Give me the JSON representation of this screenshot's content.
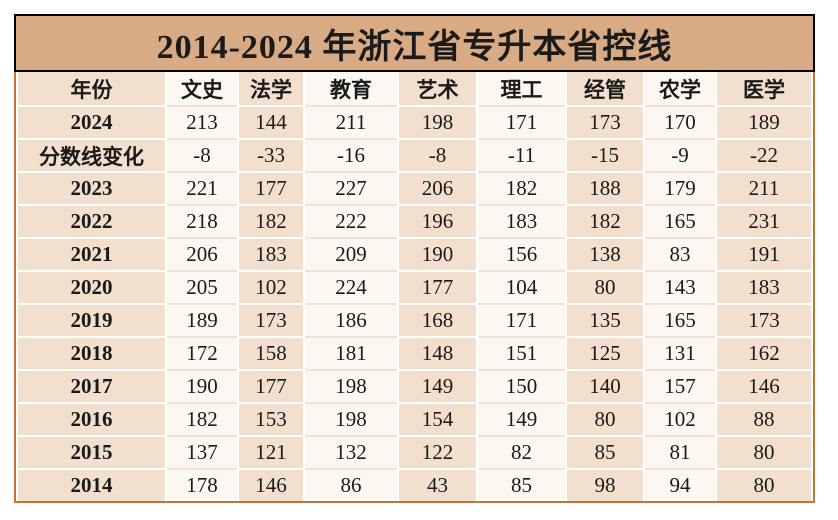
{
  "title": "2014-2024 年浙江省专升本省控线",
  "table": {
    "headers": [
      "年份",
      "文史",
      "法学",
      "教育",
      "艺术",
      "理工",
      "经管",
      "农学",
      "医学"
    ],
    "rows": [
      {
        "label": "2024",
        "values": [
          "213",
          "144",
          "211",
          "198",
          "171",
          "173",
          "170",
          "189"
        ]
      },
      {
        "label": "分数线变化",
        "values": [
          "-8",
          "-33",
          "-16",
          "-8",
          "-11",
          "-15",
          "-9",
          "-22"
        ]
      },
      {
        "label": "2023",
        "values": [
          "221",
          "177",
          "227",
          "206",
          "182",
          "188",
          "179",
          "211"
        ]
      },
      {
        "label": "2022",
        "values": [
          "218",
          "182",
          "222",
          "196",
          "183",
          "182",
          "165",
          "231"
        ]
      },
      {
        "label": "2021",
        "values": [
          "206",
          "183",
          "209",
          "190",
          "156",
          "138",
          "83",
          "191"
        ]
      },
      {
        "label": "2020",
        "values": [
          "205",
          "102",
          "224",
          "177",
          "104",
          "80",
          "143",
          "183"
        ]
      },
      {
        "label": "2019",
        "values": [
          "189",
          "173",
          "186",
          "168",
          "171",
          "135",
          "165",
          "173"
        ]
      },
      {
        "label": "2018",
        "values": [
          "172",
          "158",
          "181",
          "148",
          "151",
          "125",
          "131",
          "162"
        ]
      },
      {
        "label": "2017",
        "values": [
          "190",
          "177",
          "198",
          "149",
          "150",
          "140",
          "157",
          "146"
        ]
      },
      {
        "label": "2016",
        "values": [
          "182",
          "153",
          "198",
          "154",
          "149",
          "80",
          "102",
          "88"
        ]
      },
      {
        "label": "2015",
        "values": [
          "137",
          "121",
          "132",
          "122",
          "82",
          "85",
          "81",
          "80"
        ]
      },
      {
        "label": "2014",
        "values": [
          "178",
          "146",
          "86",
          "43",
          "85",
          "98",
          "94",
          "80"
        ]
      }
    ]
  },
  "colors": {
    "title_bar_bg": "#d8ab84",
    "title_border": "#000000",
    "tan_column_bg": "#f3dfce",
    "cream_column_bg": "#fcf8f1",
    "cream_separator": "#f3e1d2",
    "outer_border": "#bf7639",
    "text": "#1a1a1a",
    "page_bg": "#ffffff"
  },
  "chart_data": {
    "type": "table",
    "title": "2014-2024 年浙江省专升本省控线",
    "categories": [
      "文史",
      "法学",
      "教育",
      "艺术",
      "理工",
      "经管",
      "农学",
      "医学"
    ],
    "series": [
      {
        "name": "2024",
        "values": [
          213,
          144,
          211,
          198,
          171,
          173,
          170,
          189
        ]
      },
      {
        "name": "分数线变化",
        "values": [
          -8,
          -33,
          -16,
          -8,
          -11,
          -15,
          -9,
          -22
        ]
      },
      {
        "name": "2023",
        "values": [
          221,
          177,
          227,
          206,
          182,
          188,
          179,
          211
        ]
      },
      {
        "name": "2022",
        "values": [
          218,
          182,
          222,
          196,
          183,
          182,
          165,
          231
        ]
      },
      {
        "name": "2021",
        "values": [
          206,
          183,
          209,
          190,
          156,
          138,
          83,
          191
        ]
      },
      {
        "name": "2020",
        "values": [
          205,
          102,
          224,
          177,
          104,
          80,
          143,
          183
        ]
      },
      {
        "name": "2019",
        "values": [
          189,
          173,
          186,
          168,
          171,
          135,
          165,
          173
        ]
      },
      {
        "name": "2018",
        "values": [
          172,
          158,
          181,
          148,
          151,
          125,
          131,
          162
        ]
      },
      {
        "name": "2017",
        "values": [
          190,
          177,
          198,
          149,
          150,
          140,
          157,
          146
        ]
      },
      {
        "name": "2016",
        "values": [
          182,
          153,
          198,
          154,
          149,
          80,
          102,
          88
        ]
      },
      {
        "name": "2015",
        "values": [
          137,
          121,
          132,
          122,
          82,
          85,
          81,
          80
        ]
      },
      {
        "name": "2014",
        "values": [
          178,
          146,
          86,
          43,
          85,
          98,
          94,
          80
        ]
      }
    ]
  }
}
